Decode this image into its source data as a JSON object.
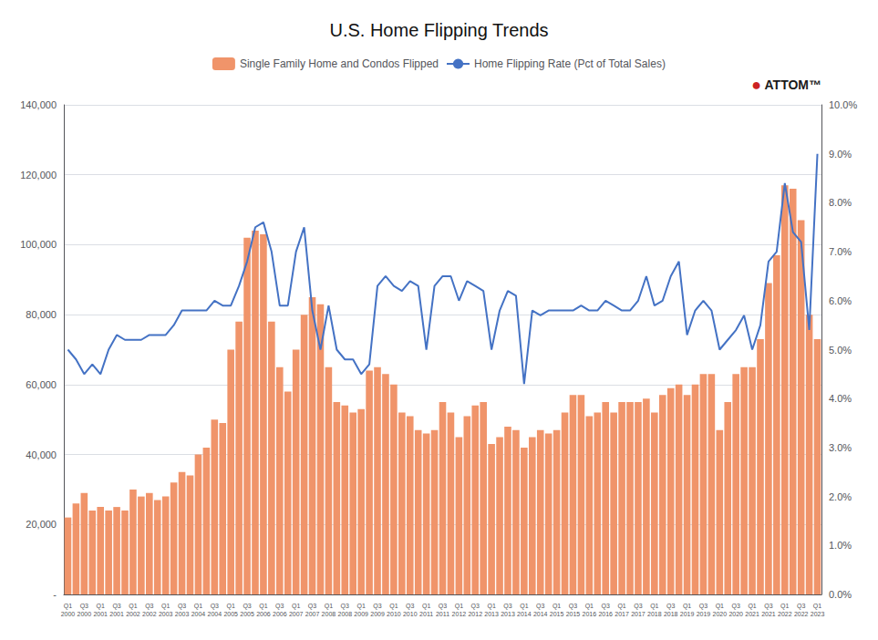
{
  "chart_data": {
    "type": "bar",
    "title": "U.S. Home Flipping Trends",
    "categories": [
      "Q1\n2000",
      null,
      "Q3\n2000",
      null,
      "Q1\n2001",
      null,
      "Q3\n2001",
      null,
      "Q1\n2002",
      null,
      "Q3\n2002",
      null,
      "Q1\n2003",
      null,
      "Q3\n2003",
      null,
      "Q1\n2004",
      null,
      "Q3\n2004",
      null,
      "Q1\n2005",
      null,
      "Q3\n2005",
      null,
      "Q1\n2006",
      null,
      "Q3\n2006",
      null,
      "Q1\n2007",
      null,
      "Q3\n2007",
      null,
      "Q1\n2008",
      null,
      "Q3\n2008",
      null,
      "Q1\n2009",
      null,
      "Q3\n2009",
      null,
      "Q1\n2010",
      null,
      "Q3\n2010",
      null,
      "Q1\n2011",
      null,
      "Q3\n2011",
      null,
      "Q1\n2012",
      null,
      "Q3\n2012",
      null,
      "Q1\n2013",
      null,
      "Q3\n2013",
      null,
      "Q1\n2014",
      null,
      "Q3\n2014",
      null,
      "Q1\n2015",
      null,
      "Q3\n2015",
      null,
      "Q1\n2016",
      null,
      "Q3\n2016",
      null,
      "Q1\n2017",
      null,
      "Q3\n2017",
      null,
      "Q1\n2018",
      null,
      "Q3\n2018",
      null,
      "Q1\n2019",
      null,
      "Q3\n2019",
      null,
      "Q1\n2020",
      null,
      "Q3\n2020",
      null,
      "Q1\n2021",
      null,
      "Q3\n2021",
      null,
      "Q1\n2022",
      null,
      "Q3\n2022",
      null,
      "Q1\n2023"
    ],
    "series": [
      {
        "name": "Single Family Home and Condos Flipped",
        "type": "bar",
        "color": "#F0946A",
        "values": [
          22000,
          26000,
          29000,
          24000,
          25000,
          24000,
          25000,
          24000,
          30000,
          28000,
          29000,
          27000,
          28000,
          32000,
          35000,
          34000,
          40000,
          42000,
          50000,
          49000,
          70000,
          78000,
          102000,
          104000,
          103000,
          78000,
          65000,
          58000,
          70000,
          80000,
          85000,
          83000,
          65000,
          55000,
          54000,
          52000,
          53000,
          64000,
          65000,
          63000,
          60000,
          52000,
          51000,
          47000,
          46000,
          47000,
          55000,
          52000,
          45000,
          51000,
          54000,
          55000,
          43000,
          45000,
          48000,
          47000,
          42000,
          45000,
          47000,
          46000,
          47000,
          52000,
          57000,
          57000,
          51000,
          52000,
          55000,
          52000,
          55000,
          55000,
          55000,
          56000,
          52000,
          57000,
          59000,
          60000,
          57000,
          60000,
          63000,
          63000,
          47000,
          55000,
          63000,
          65000,
          65000,
          73000,
          89000,
          97000,
          117000,
          116000,
          107000,
          80000,
          73000
        ]
      },
      {
        "name": "Home Flipping Rate (Pct of Total Sales)",
        "type": "line",
        "axis": "y2",
        "color": "#4472C4",
        "values": [
          5.0,
          4.8,
          4.5,
          4.7,
          4.5,
          5.0,
          5.3,
          5.2,
          5.2,
          5.2,
          5.3,
          5.3,
          5.3,
          5.5,
          5.8,
          5.8,
          5.8,
          5.8,
          6.0,
          5.9,
          5.9,
          6.3,
          6.8,
          7.5,
          7.6,
          7.0,
          5.9,
          5.9,
          7.0,
          7.5,
          5.8,
          5.0,
          5.9,
          5.0,
          4.8,
          4.8,
          4.5,
          4.7,
          6.3,
          6.5,
          6.3,
          6.2,
          6.4,
          6.3,
          5.0,
          6.3,
          6.5,
          6.5,
          6.0,
          6.4,
          6.3,
          6.2,
          5.0,
          5.8,
          6.2,
          6.1,
          4.3,
          5.8,
          5.7,
          5.8,
          5.8,
          5.8,
          5.8,
          5.9,
          5.8,
          5.8,
          6.0,
          5.9,
          5.8,
          5.8,
          6.0,
          6.5,
          5.9,
          6.0,
          6.5,
          6.8,
          5.3,
          5.8,
          6.0,
          5.8,
          5.0,
          5.2,
          5.4,
          5.7,
          5.0,
          5.5,
          6.8,
          7.0,
          8.4,
          7.4,
          7.2,
          5.4,
          9.0
        ]
      }
    ],
    "ylim": [
      0,
      140000
    ],
    "yticks": [
      {
        "value": 0,
        "label": "-"
      },
      {
        "value": 20000,
        "label": "20,000"
      },
      {
        "value": 40000,
        "label": "40,000"
      },
      {
        "value": 60000,
        "label": "60,000"
      },
      {
        "value": 80000,
        "label": "80,000"
      },
      {
        "value": 100000,
        "label": "100,000"
      },
      {
        "value": 120000,
        "label": "120,000"
      },
      {
        "value": 140000,
        "label": "140,000"
      }
    ],
    "y2lim": [
      0,
      10.0
    ],
    "y2ticks": [
      {
        "value": 0,
        "label": "0.0%"
      },
      {
        "value": 1,
        "label": "1.0%"
      },
      {
        "value": 2,
        "label": "2.0%"
      },
      {
        "value": 3,
        "label": "3.0%"
      },
      {
        "value": 4,
        "label": "4.0%"
      },
      {
        "value": 5,
        "label": "5.0%"
      },
      {
        "value": 6,
        "label": "6.0%"
      },
      {
        "value": 7,
        "label": "7.0%"
      },
      {
        "value": 8,
        "label": "8.0%"
      },
      {
        "value": 9,
        "label": "9.0%"
      },
      {
        "value": 10,
        "label": "10.0%"
      }
    ],
    "grid": true,
    "legend": "top",
    "annotations": [
      {
        "text": "●",
        "color": "#CC2222"
      },
      {
        "text": "ATTOM™"
      }
    ]
  }
}
